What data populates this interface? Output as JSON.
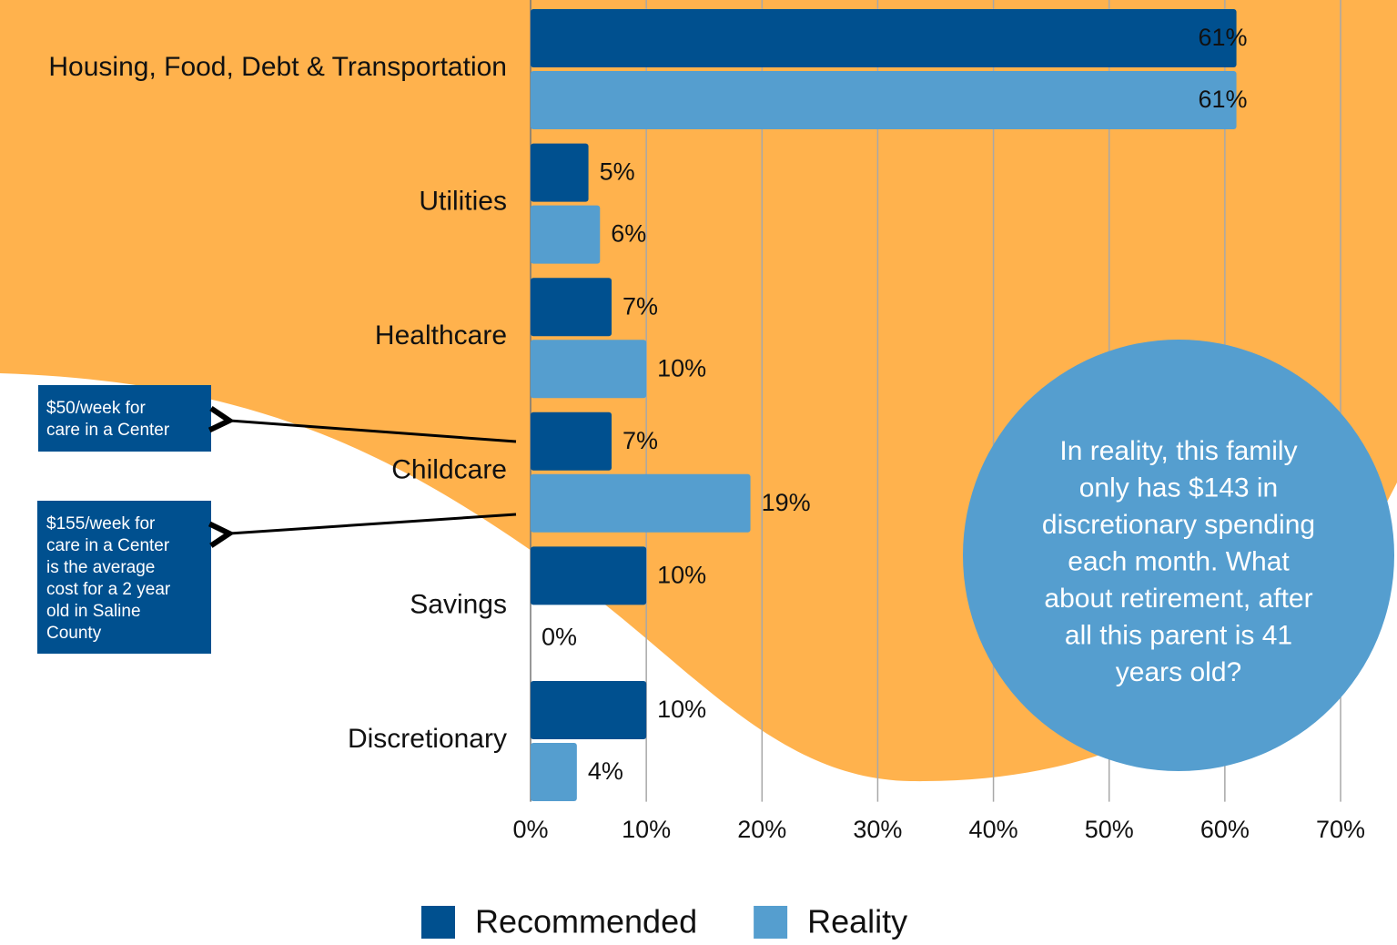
{
  "chart_data": {
    "type": "bar",
    "orientation": "horizontal",
    "categories": [
      "Housing, Food, Debt & Transportation",
      "Utilities",
      "Healthcare",
      "Childcare",
      "Savings",
      "Discretionary"
    ],
    "series": [
      {
        "name": "Recommended",
        "color": "#00508f",
        "values": [
          61,
          5,
          7,
          7,
          10,
          10
        ],
        "value_labels": [
          "61%",
          "5%",
          "7%",
          "7%",
          "10%",
          "10%"
        ]
      },
      {
        "name": "Reality",
        "color": "#559ecf",
        "values": [
          61,
          6,
          10,
          19,
          0,
          4
        ],
        "value_labels": [
          "61%",
          "6%",
          "10%",
          "19%",
          "0%",
          "4%"
        ]
      }
    ],
    "xlim": [
      0,
      70
    ],
    "xticks": [
      {
        "value": 0,
        "label": "0%"
      },
      {
        "value": 10,
        "label": "10%"
      },
      {
        "value": 20,
        "label": "20%"
      },
      {
        "value": 30,
        "label": "30%"
      },
      {
        "value": 40,
        "label": "40%"
      },
      {
        "value": 50,
        "label": "50%"
      },
      {
        "value": 60,
        "label": "60%"
      },
      {
        "value": 70,
        "label": "70%"
      }
    ],
    "grid": true,
    "legend": "bottom",
    "annotations": [
      {
        "lines": [
          "$50/week for",
          "care in a Center"
        ]
      },
      {
        "lines": [
          "$155/week for",
          "care in a Center",
          "is the average",
          "cost for a 2 year",
          "old in Saline",
          "County"
        ]
      }
    ],
    "callout": {
      "lines": [
        "In reality, this family",
        "only has $143 in",
        "discretionary spending",
        "each month. What",
        "about retirement, after",
        "all this parent is 41",
        "years old?"
      ]
    }
  }
}
